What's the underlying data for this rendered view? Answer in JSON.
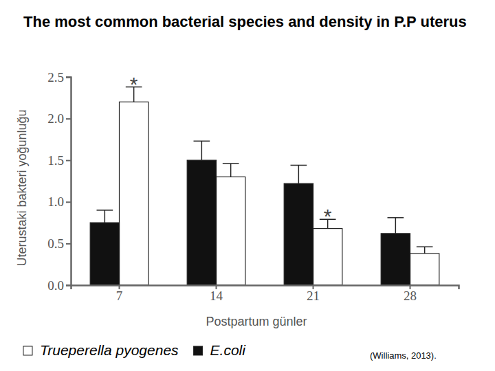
{
  "chart_data": {
    "type": "bar",
    "title": "The most common bacterial species and density in P.P uterus",
    "x_label": "Postpartum günler",
    "y_label": "Uterustaki bakteri yoğunluğu",
    "source": "(Williams, 2013).",
    "categories": [
      "7",
      "14",
      "21",
      "28"
    ],
    "series": [
      {
        "name": "Trueperella pyogenes",
        "color": "#ffffff",
        "values": [
          2.2,
          1.3,
          0.68,
          0.38
        ],
        "errors": [
          0.18,
          0.16,
          0.11,
          0.08
        ]
      },
      {
        "name": "E.coli",
        "color": "#111111",
        "values": [
          0.75,
          1.5,
          1.22,
          0.62
        ],
        "errors": [
          0.15,
          0.23,
          0.22,
          0.19
        ]
      }
    ],
    "annotations": [
      {
        "text": "*",
        "x": "7",
        "series": "Trueperella pyogenes"
      },
      {
        "text": "*",
        "x": "21",
        "series": "Trueperella pyogenes"
      }
    ],
    "ylim": [
      0,
      2.5
    ],
    "yticks": [
      {
        "value": 0,
        "label": "0.0"
      },
      0.5,
      {
        "value": 1,
        "label": "1.0"
      },
      1.5,
      {
        "value": 2,
        "label": "2.0"
      },
      2.5
    ],
    "grid": false,
    "legend": "bottom"
  }
}
